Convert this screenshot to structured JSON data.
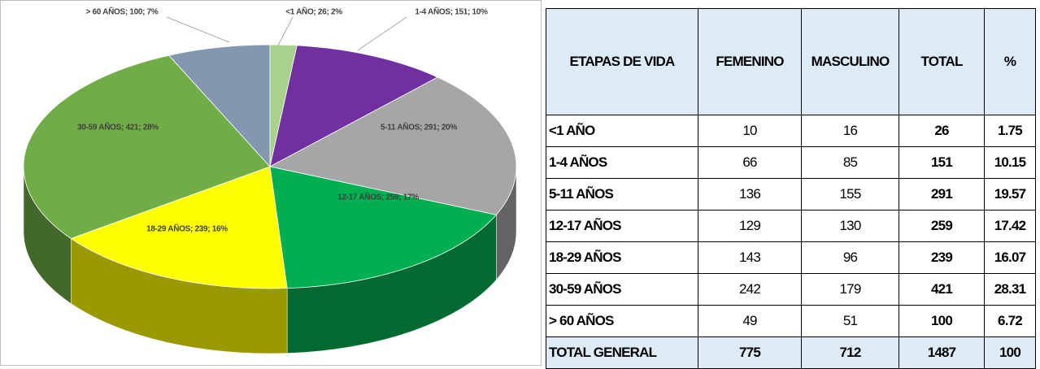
{
  "chart_data": {
    "type": "pie",
    "values": [
      26,
      151,
      291,
      259,
      239,
      421,
      100
    ],
    "value_labels": [
      "<1 AÑO; 26; 2%",
      "1-4 AÑOS; 151; 10%",
      "5-11 AÑOS; 291; 20%",
      "12-17 AÑOS; 259; 17%",
      "18-29 AÑOS; 239; 16%",
      "30-59 AÑOS; 421; 28%",
      "> 60 AÑOS; 100; 7%"
    ],
    "colors": [
      "#a9d18e",
      "#7030a0",
      "#a6a6a6",
      "#00b050",
      "#ffff00",
      "#70ad47",
      "#8497b0"
    ]
  },
  "table": {
    "header": [
      "ETAPAS DE VIDA",
      "FEMENINO",
      "MASCULINO",
      "TOTAL",
      "%"
    ],
    "rows": [
      [
        "<1 AÑO",
        10,
        16,
        26,
        1.75
      ],
      [
        "1-4 AÑOS",
        66,
        85,
        151,
        10.15
      ],
      [
        "5-11 AÑOS",
        136,
        155,
        291,
        19.57
      ],
      [
        "12-17 AÑOS",
        129,
        130,
        259,
        17.42
      ],
      [
        "18-29 AÑOS",
        143,
        96,
        239,
        16.07
      ],
      [
        "30-59 AÑOS",
        242,
        179,
        421,
        28.31
      ],
      [
        "> 60 AÑOS",
        49,
        51,
        100,
        6.72
      ],
      [
        "TOTAL GENERAL",
        775,
        712,
        1487,
        100
      ]
    ]
  }
}
